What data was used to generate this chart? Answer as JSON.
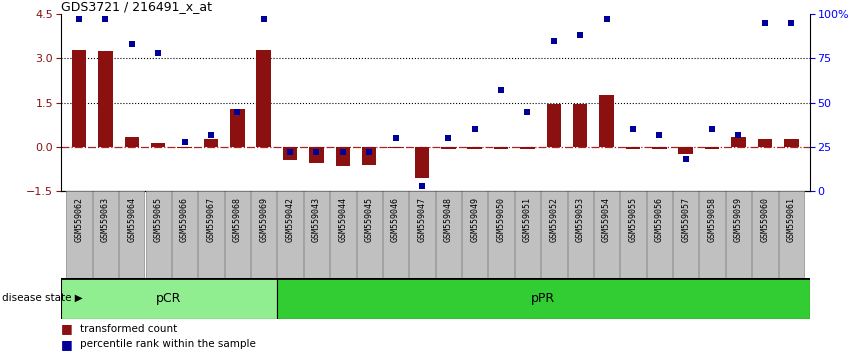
{
  "title": "GDS3721 / 216491_x_at",
  "samples": [
    "GSM559062",
    "GSM559063",
    "GSM559064",
    "GSM559065",
    "GSM559066",
    "GSM559067",
    "GSM559068",
    "GSM559069",
    "GSM559042",
    "GSM559043",
    "GSM559044",
    "GSM559045",
    "GSM559046",
    "GSM559047",
    "GSM559048",
    "GSM559049",
    "GSM559050",
    "GSM559051",
    "GSM559052",
    "GSM559053",
    "GSM559054",
    "GSM559055",
    "GSM559056",
    "GSM559057",
    "GSM559058",
    "GSM559059",
    "GSM559060",
    "GSM559061"
  ],
  "transformed_count": [
    3.3,
    3.25,
    0.35,
    0.12,
    -0.05,
    0.28,
    1.3,
    3.3,
    -0.45,
    -0.55,
    -0.65,
    -0.6,
    -0.05,
    -1.05,
    -0.07,
    -0.07,
    -0.07,
    -0.07,
    1.45,
    1.45,
    1.75,
    -0.07,
    -0.07,
    -0.25,
    -0.07,
    0.35,
    0.28,
    0.28
  ],
  "percentile_rank": [
    97,
    97,
    83,
    78,
    28,
    32,
    45,
    97,
    22,
    22,
    22,
    22,
    30,
    3,
    30,
    35,
    57,
    45,
    85,
    88,
    97,
    35,
    32,
    18,
    35,
    32,
    95,
    95
  ],
  "pcr_count": 8,
  "pcr_label": "pCR",
  "ppr_label": "pPR",
  "pcr_color": "#90EE90",
  "ppr_color": "#32CD32",
  "ylim_left": [
    -1.5,
    4.5
  ],
  "ylim_right": [
    0,
    100
  ],
  "yticks_left": [
    -1.5,
    0,
    1.5,
    3.0,
    4.5
  ],
  "yticks_right": [
    0,
    25,
    50,
    75,
    100
  ],
  "ytick_right_labels": [
    "0",
    "25",
    "50",
    "75",
    "100%"
  ],
  "hlines": [
    3.0,
    1.5
  ],
  "bar_color": "#8B1010",
  "dot_color": "#000099",
  "zero_line_color": "#AA2222",
  "tick_bg_color": "#C0C0C0",
  "tick_border_color": "#888888",
  "title_fontsize": 9,
  "bar_width": 0.55,
  "dot_size": 20
}
